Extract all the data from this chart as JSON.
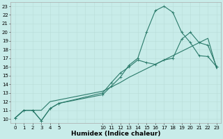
{
  "bg_color": "#c8ece9",
  "grid_color": "#b8dcd8",
  "line_color": "#2a7a6a",
  "xlabel": "Humidex (Indice chaleur)",
  "xlim": [
    -0.5,
    23.5
  ],
  "ylim": [
    9.5,
    23.5
  ],
  "xtick_positions": [
    0,
    1,
    2,
    3,
    4,
    5,
    10,
    11,
    12,
    13,
    14,
    15,
    16,
    17,
    18,
    19,
    20,
    21,
    22,
    23
  ],
  "xtick_labels": [
    "0",
    "1",
    "2",
    "3",
    "4",
    "5",
    "10",
    "11",
    "12",
    "13",
    "14",
    "15",
    "16",
    "17",
    "18",
    "19",
    "20",
    "21",
    "22",
    "23"
  ],
  "ytick_positions": [
    10,
    11,
    12,
    13,
    14,
    15,
    16,
    17,
    18,
    19,
    20,
    21,
    22,
    23
  ],
  "line1_x": [
    0,
    1,
    2,
    3,
    4,
    5,
    10,
    11,
    12,
    13,
    14,
    15,
    16,
    17,
    18,
    19,
    20,
    21,
    22,
    23
  ],
  "line1_y": [
    10.1,
    11.0,
    11.0,
    11.0,
    12.0,
    12.2,
    13.2,
    13.7,
    14.2,
    14.8,
    15.3,
    15.8,
    16.3,
    16.8,
    17.3,
    17.8,
    18.3,
    18.8,
    19.3,
    15.8
  ],
  "line2_x": [
    0,
    1,
    2,
    3,
    4,
    5,
    10,
    11,
    12,
    13,
    14,
    15,
    16,
    17,
    18,
    19,
    20,
    21,
    22,
    23
  ],
  "line2_y": [
    10.1,
    11.0,
    11.0,
    9.8,
    11.2,
    11.8,
    12.8,
    13.8,
    14.8,
    16.2,
    17.0,
    20.0,
    22.5,
    23.0,
    22.3,
    20.0,
    18.8,
    17.3,
    17.2,
    16.0
  ],
  "line3_x": [
    0,
    1,
    2,
    3,
    4,
    5,
    10,
    11,
    12,
    13,
    14,
    15,
    16,
    17,
    18,
    19,
    20,
    21,
    22,
    23
  ],
  "line3_y": [
    10.1,
    11.0,
    11.0,
    9.8,
    11.2,
    11.8,
    13.0,
    14.2,
    15.3,
    16.0,
    16.8,
    16.5,
    16.3,
    16.8,
    17.0,
    19.2,
    20.0,
    18.8,
    18.5,
    16.0
  ],
  "figsize": [
    3.2,
    2.0
  ],
  "dpi": 100,
  "fontsize_ticks": 5.0,
  "fontsize_xlabel": 6.5
}
